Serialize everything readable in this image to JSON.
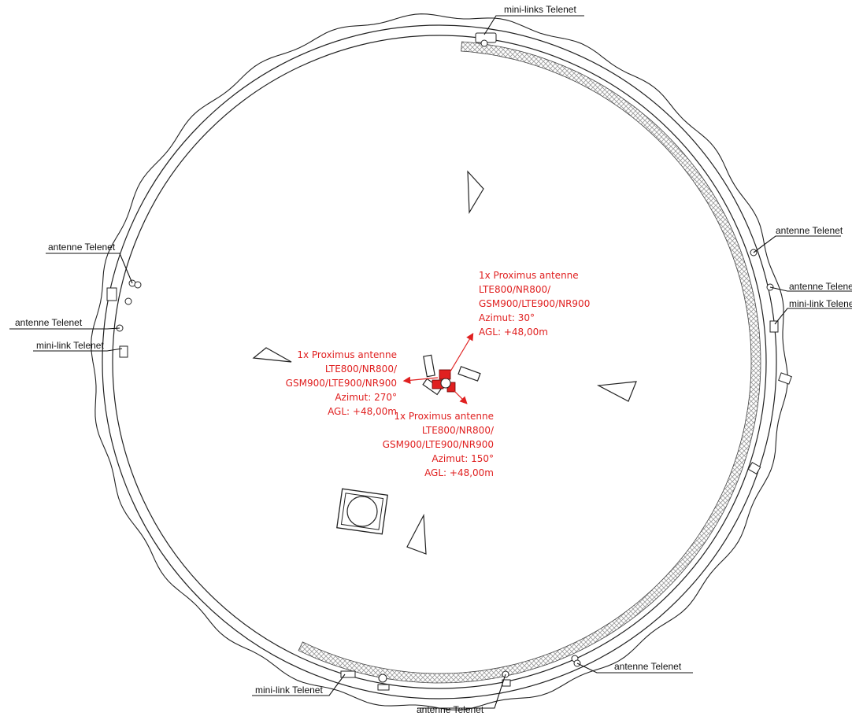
{
  "colors": {
    "line": "#222222",
    "proximus": "#e02020",
    "hatch": "#9a9a9a"
  },
  "telenet_labels": {
    "mini_links_top": "mini-links Telenet",
    "antenne_right_1": "antenne Telenet",
    "antenne_right_2": "antenne Telene",
    "mini_link_right": "mini-link Telene",
    "antenne_left_1": "antenne Telenet",
    "antenne_left_2": "antenne Telenet",
    "mini_link_left": "mini-link Telenet",
    "antenne_bottom_right": "antenne Telenet",
    "mini_link_bottom": "mini-link Telenet",
    "antenne_bottom": "antenne Telenet"
  },
  "proximus_sectors": [
    {
      "line1": "1x Proximus antenne",
      "line2": "LTE800/NR800/",
      "line3": "GSM900/LTE900/NR900",
      "line4": "Azimut: 30°",
      "line5": "AGL: +48,00m"
    },
    {
      "line1": "1x Proximus antenne",
      "line2": "LTE800/NR800/",
      "line3": "GSM900/LTE900/NR900",
      "line4": "Azimut: 270°",
      "line5": "AGL: +48,00m"
    },
    {
      "line1": "1x Proximus antenne",
      "line2": "LTE800/NR800/",
      "line3": "GSM900/LTE900/NR900",
      "line4": "Azimut: 150°",
      "line5": "AGL: +48,00m"
    }
  ]
}
